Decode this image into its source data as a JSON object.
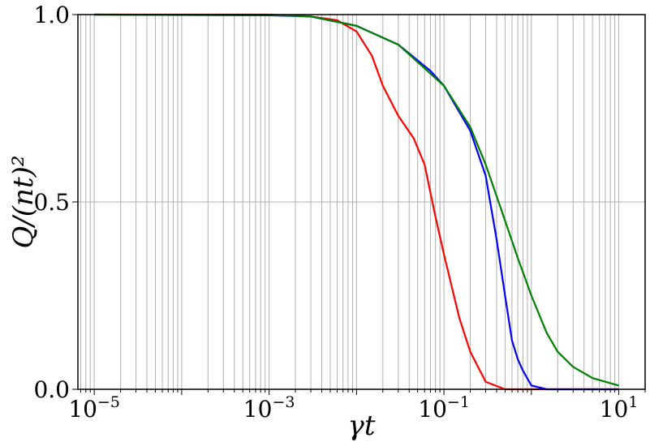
{
  "chart_data": {
    "type": "line",
    "xlabel": "γt",
    "ylabel": "Q/(nt)²",
    "xscale": "log",
    "xlim": [
      6.5e-06,
      20
    ],
    "ylim": [
      0,
      1
    ],
    "grid": "on (vertical lines at major and minor x ticks; horizontal lines at y ticks)",
    "x_ticks": [
      {
        "value": 1e-05,
        "base": "10",
        "exp": "−5"
      },
      {
        "value": 0.001,
        "base": "10",
        "exp": "−3"
      },
      {
        "value": 0.1,
        "base": "10",
        "exp": "−1"
      },
      {
        "value": 10,
        "base": "10",
        "exp": "1"
      }
    ],
    "y_ticks": [
      {
        "value": 0,
        "label": "0.0"
      },
      {
        "value": 0.5,
        "label": "0.5"
      },
      {
        "value": 1,
        "label": "1.0"
      }
    ],
    "series": [
      {
        "color": "#ff0000",
        "points": [
          [
            1e-05,
            1.0
          ],
          [
            0.001,
            1.0
          ],
          [
            0.003,
            0.995
          ],
          [
            0.006,
            0.985
          ],
          [
            0.01,
            0.955
          ],
          [
            0.015,
            0.89
          ],
          [
            0.02,
            0.81
          ],
          [
            0.03,
            0.73
          ],
          [
            0.045,
            0.67
          ],
          [
            0.06,
            0.6
          ],
          [
            0.08,
            0.46
          ],
          [
            0.1,
            0.36
          ],
          [
            0.15,
            0.19
          ],
          [
            0.2,
            0.1
          ],
          [
            0.3,
            0.02
          ],
          [
            0.5,
            0.0
          ],
          [
            1,
            0.0
          ],
          [
            10,
            0.0
          ]
        ]
      },
      {
        "color": "#0000ff",
        "points": [
          [
            1e-05,
            1.0
          ],
          [
            0.001,
            0.998
          ],
          [
            0.003,
            0.995
          ],
          [
            0.01,
            0.97
          ],
          [
            0.03,
            0.92
          ],
          [
            0.07,
            0.85
          ],
          [
            0.1,
            0.81
          ],
          [
            0.2,
            0.69
          ],
          [
            0.3,
            0.57
          ],
          [
            0.4,
            0.4
          ],
          [
            0.5,
            0.25
          ],
          [
            0.6,
            0.13
          ],
          [
            0.7,
            0.08
          ],
          [
            0.8,
            0.05
          ],
          [
            1.0,
            0.01
          ],
          [
            1.5,
            0.0
          ],
          [
            10,
            0.0
          ]
        ]
      },
      {
        "color": "#008000",
        "points": [
          [
            1e-05,
            1.0
          ],
          [
            0.001,
            0.999
          ],
          [
            0.003,
            0.995
          ],
          [
            0.01,
            0.97
          ],
          [
            0.03,
            0.92
          ],
          [
            0.1,
            0.81
          ],
          [
            0.2,
            0.7
          ],
          [
            0.3,
            0.6
          ],
          [
            0.5,
            0.45
          ],
          [
            0.7,
            0.35
          ],
          [
            1.0,
            0.25
          ],
          [
            1.5,
            0.15
          ],
          [
            2,
            0.1
          ],
          [
            3,
            0.06
          ],
          [
            5,
            0.03
          ],
          [
            10,
            0.01
          ]
        ]
      }
    ]
  }
}
